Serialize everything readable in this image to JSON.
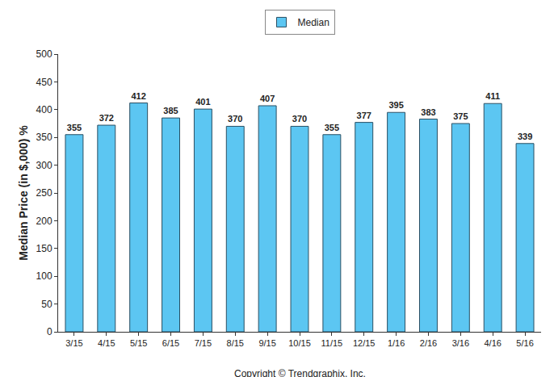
{
  "chart_data": {
    "type": "bar",
    "categories": [
      "3/15",
      "4/15",
      "5/15",
      "6/15",
      "7/15",
      "8/15",
      "9/15",
      "10/15",
      "11/15",
      "12/15",
      "1/16",
      "2/16",
      "3/16",
      "4/16",
      "5/16"
    ],
    "series": [
      {
        "name": "Median",
        "color": "#5cc6f2",
        "values": [
          355,
          372,
          412,
          385,
          401,
          370,
          407,
          370,
          355,
          377,
          395,
          383,
          375,
          411,
          339
        ]
      }
    ],
    "y_label": "Median Price (in $,000) %",
    "ylim": [
      0,
      500
    ],
    "yticks": [
      0,
      50,
      100,
      150,
      200,
      250,
      300,
      350,
      400,
      450,
      500
    ],
    "grid": false,
    "legend": "top",
    "data_labels": true,
    "annotations": [
      "Copyright © Trendgraphix, Inc."
    ]
  }
}
